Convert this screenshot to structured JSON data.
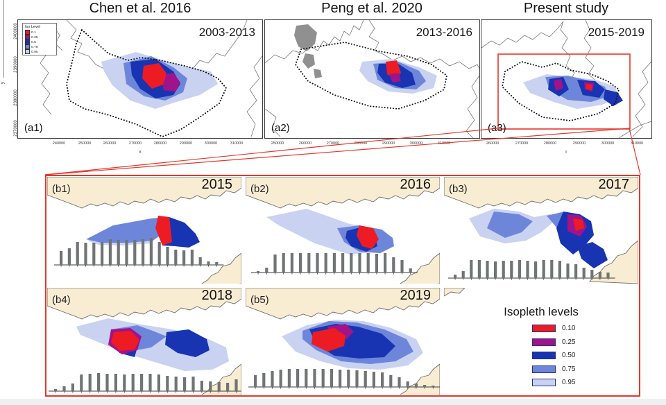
{
  "header": {
    "titles": [
      "Chen et al. 2016",
      "Peng et al. 2020",
      "Present study"
    ]
  },
  "panels_top": [
    {
      "label": "(a1)",
      "period": "2003-2013",
      "x_ticks": [
        "240000",
        "250000",
        "260000",
        "270000",
        "280000",
        "290000",
        "300000",
        "310000"
      ]
    },
    {
      "label": "(a2)",
      "period": "2013-2016",
      "x_ticks": [
        "250000",
        "260000",
        "270000",
        "280000",
        "290000",
        "300000",
        "310000"
      ]
    },
    {
      "label": "(a3)",
      "period": "2015-2019",
      "x_ticks": [
        "260000",
        "270000",
        "280000",
        "290000",
        "300000",
        "310000"
      ]
    }
  ],
  "axes": {
    "x_label": "x",
    "y_label": "y",
    "y_ticks": [
      "2400000",
      "2390000",
      "2380000",
      "2370000"
    ]
  },
  "mini_legend": {
    "title": "Iso Level",
    "entries": [
      {
        "level": "0.1",
        "color": "#ed1c24"
      },
      {
        "level": "0.25",
        "color": "#a1138b"
      },
      {
        "level": "0.5",
        "color": "#1834b2"
      },
      {
        "level": "0.75",
        "color": "#6e86da"
      },
      {
        "level": "0.95",
        "color": "#cad2f2"
      }
    ]
  },
  "inset": {
    "panels": [
      {
        "label": "(b1)",
        "year": "2015"
      },
      {
        "label": "(b2)",
        "year": "2016"
      },
      {
        "label": "(b3)",
        "year": "2017"
      },
      {
        "label": "(b4)",
        "year": "2018"
      },
      {
        "label": "(b5)",
        "year": "2019"
      }
    ],
    "legend": {
      "title": "Isopleth levels",
      "entries": [
        {
          "level": "0.10",
          "color": "#ed1c24"
        },
        {
          "level": "0.25",
          "color": "#a1138b"
        },
        {
          "level": "0.50",
          "color": "#1834b2"
        },
        {
          "level": "0.75",
          "color": "#6e86da"
        },
        {
          "level": "0.95",
          "color": "#cad2f2"
        }
      ]
    }
  },
  "colors": {
    "red_accent": "#e5372c",
    "kde_red": "#ed1c24",
    "kde_purple": "#a1138b",
    "kde_dark_blue": "#1834b2",
    "kde_mid_blue": "#6e86da",
    "kde_light_blue": "#cad2f2",
    "land": "#f8ecd2",
    "gray_island": "#909090",
    "bar_gray": "#707474"
  },
  "chart_data": [
    {
      "type": "heatmap",
      "panel": "a1",
      "title": "Chen et al. 2016",
      "period": "2003-2013",
      "isopleth_levels": [
        0.1,
        0.25,
        0.5,
        0.75,
        0.95
      ],
      "x_range": [
        240000,
        310000
      ],
      "y_range": [
        2370000,
        2400000
      ]
    },
    {
      "type": "heatmap",
      "panel": "a2",
      "title": "Peng et al. 2020",
      "period": "2013-2016",
      "isopleth_levels": [
        0.1,
        0.25,
        0.5,
        0.75,
        0.95
      ],
      "x_range": [
        250000,
        310000
      ]
    },
    {
      "type": "heatmap",
      "panel": "a3",
      "title": "Present study",
      "period": "2015-2019",
      "isopleth_levels": [
        0.1,
        0.25,
        0.5,
        0.75,
        0.95
      ],
      "x_range": [
        260000,
        310000
      ]
    },
    {
      "type": "bar",
      "panel": "b1",
      "year": 2015,
      "values": [
        20,
        24,
        33,
        32,
        32,
        33,
        37,
        36,
        36,
        36,
        37,
        39,
        33,
        26,
        22,
        21,
        22,
        11,
        5,
        4
      ]
    },
    {
      "type": "bar",
      "panel": "b2",
      "year": 2016,
      "values": [
        2,
        7,
        26,
        28,
        28,
        28,
        28,
        28,
        28,
        28,
        28,
        28,
        28,
        28,
        27,
        28,
        22,
        18,
        6
      ]
    },
    {
      "type": "bar",
      "panel": "b3",
      "year": 2017,
      "values": [
        5,
        10,
        26,
        26,
        25,
        24,
        25,
        25,
        26,
        25,
        24,
        26,
        26,
        25,
        21,
        20,
        15,
        12,
        9,
        8
      ]
    },
    {
      "type": "bar",
      "panel": "b4",
      "year": 2018,
      "values": [
        3,
        7,
        11,
        24,
        25,
        26,
        25,
        25,
        24,
        25,
        25,
        25,
        24,
        22,
        21,
        20,
        21,
        15,
        14,
        13,
        12,
        17
      ]
    },
    {
      "type": "bar",
      "panel": "b5",
      "year": 2019,
      "values": [
        17,
        20,
        23,
        25,
        26,
        26,
        26,
        26,
        26,
        26,
        25,
        25,
        24,
        23,
        22,
        21,
        17,
        14,
        8,
        5,
        3,
        2
      ]
    }
  ]
}
